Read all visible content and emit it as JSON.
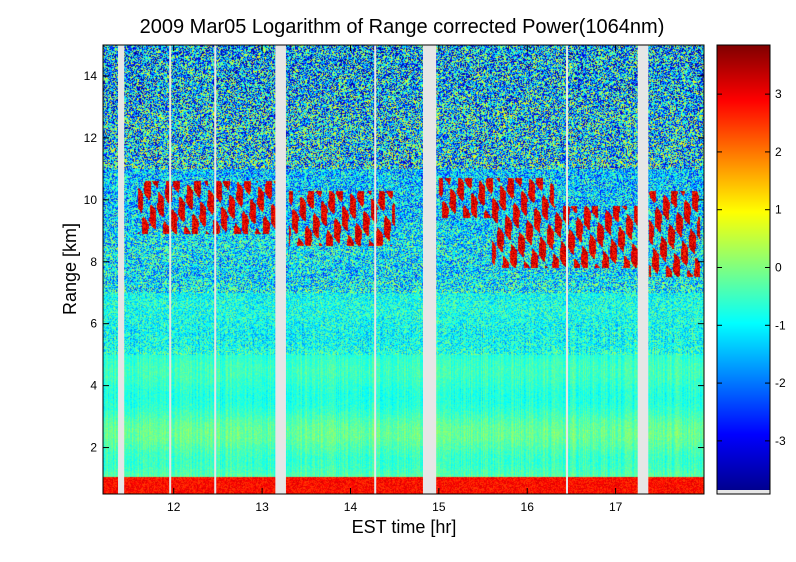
{
  "chart_data": {
    "type": "heatmap",
    "title": "2009 Mar05  Logarithm of Range corrected Power(1064nm)",
    "xlabel": "EST time [hr]",
    "ylabel": "Range [km]",
    "xlim": [
      11.2,
      18.0
    ],
    "ylim": [
      0.5,
      15.0
    ],
    "x_ticks": [
      12,
      13,
      14,
      15,
      16,
      17
    ],
    "x_tick_labels": [
      "12",
      "13",
      "14",
      "15",
      "16",
      "17"
    ],
    "y_ticks": [
      2,
      4,
      6,
      8,
      10,
      12,
      14
    ],
    "y_tick_labels": [
      "2",
      "4",
      "6",
      "8",
      "10",
      "12",
      "14"
    ],
    "colorbar": {
      "colormap": "jet",
      "clim": [
        -3.85,
        3.85
      ],
      "ticks": [
        -3,
        -2,
        -1,
        0,
        1,
        2,
        3
      ],
      "tick_labels": [
        "-3",
        "-2",
        "-1",
        "0",
        "1",
        "2",
        "3"
      ]
    },
    "data_gaps_hr": [
      [
        11.37,
        11.44
      ],
      [
        13.15,
        13.27
      ],
      [
        14.82,
        14.97
      ],
      [
        17.25,
        17.37
      ]
    ],
    "thin_gaps_hr": [
      11.96,
      12.47,
      14.28,
      16.45
    ],
    "features": {
      "surface_layer_km": [
        0.5,
        1.05
      ],
      "cirrus_layer_km": [
        7.5,
        10.7
      ],
      "cirrus_segments": [
        {
          "t_start": 11.6,
          "t_end": 13.2,
          "base_km": 8.9,
          "top_km": 10.6
        },
        {
          "t_start": 13.3,
          "t_end": 14.5,
          "base_km": 8.5,
          "top_km": 10.3
        },
        {
          "t_start": 15.0,
          "t_end": 16.3,
          "base_km": 9.4,
          "top_km": 10.7
        },
        {
          "t_start": 15.6,
          "t_end": 17.25,
          "base_km": 7.8,
          "top_km": 9.8
        },
        {
          "t_start": 17.38,
          "t_end": 17.95,
          "base_km": 7.5,
          "top_km": 10.3
        }
      ]
    }
  },
  "colors": {
    "gap": "#e6e6e6",
    "axis": "#000000"
  }
}
